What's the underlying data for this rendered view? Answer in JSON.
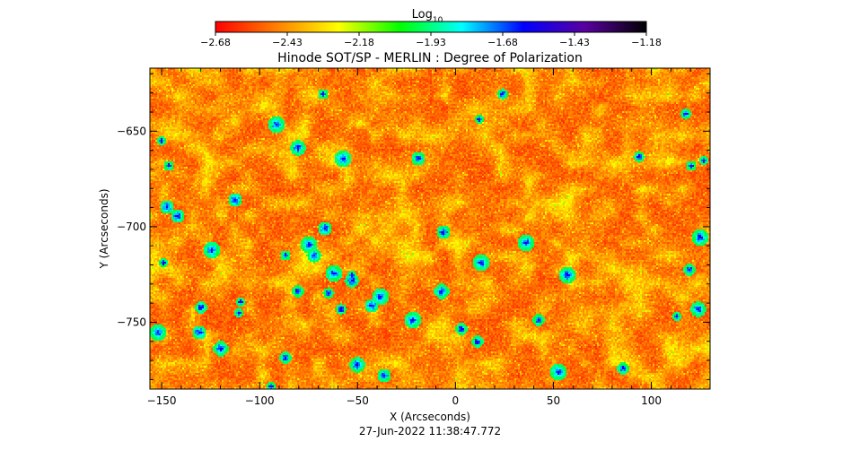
{
  "chart_data": {
    "type": "heatmap",
    "title": "Hinode SOT/SP - MERLIN : Degree of Polarization",
    "xlabel": "X (Arcseconds)",
    "ylabel": "Y (Arcseconds)",
    "timestamp": "27-Jun-2022 11:38:47.772",
    "colorbar": {
      "label_base": "Log",
      "label_sub": "10",
      "range": [
        -2.68,
        -1.18
      ],
      "ticks": [
        -2.68,
        -2.43,
        -2.18,
        -1.93,
        -1.68,
        -1.43,
        -1.18
      ],
      "tick_labels": [
        "-2.68",
        "-2.43",
        "-2.18",
        "-1.93",
        "-1.68",
        "-1.43",
        "-1.18"
      ],
      "colormap": [
        "#ff0000",
        "#ff8000",
        "#ffff00",
        "#00ff00",
        "#00ffff",
        "#0000ff",
        "#5a00a0",
        "#000000"
      ]
    },
    "xlim": [
      -156,
      130
    ],
    "ylim": [
      -785,
      -617
    ],
    "xticks": [
      -150,
      -100,
      -50,
      0,
      50,
      100
    ],
    "yticks": [
      -650,
      -700,
      -750
    ],
    "typical_value_range": [
      -2.6,
      -2.2
    ],
    "features": [
      {
        "desc": "scattered strongly polarized patches",
        "value": -1.55
      }
    ]
  }
}
